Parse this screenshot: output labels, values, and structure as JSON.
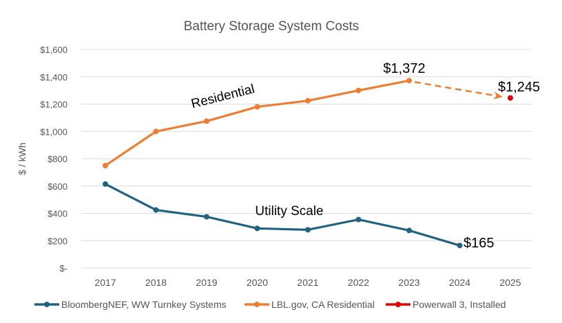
{
  "chart_data": {
    "type": "line",
    "title": "Battery Storage System Costs",
    "ylabel": "$ / kWh",
    "xlabel": "",
    "ylim": [
      0,
      1600
    ],
    "yticks": [
      0,
      200,
      400,
      600,
      800,
      1000,
      1200,
      1400,
      1600
    ],
    "ytick_labels": [
      "$-",
      "$200",
      "$400",
      "$600",
      "$800",
      "$1,000",
      "$1,200",
      "$1,400",
      "$1,600"
    ],
    "categories": [
      "2017",
      "2018",
      "2019",
      "2020",
      "2021",
      "2022",
      "2023",
      "2024",
      "2025"
    ],
    "grid": "horizontal",
    "legend": "bottom",
    "series": [
      {
        "name": "BloombergNEF, WW Turnkey Systems",
        "color": "#1f6281",
        "values": [
          615,
          425,
          375,
          290,
          280,
          355,
          275,
          165,
          null
        ]
      },
      {
        "name": "LBL.gov, CA Residential",
        "color": "#ed7d31",
        "values": [
          750,
          1000,
          1075,
          1180,
          1225,
          1300,
          1372,
          null,
          null
        ]
      },
      {
        "name": "Powerwall 3, Installed",
        "color": "#e00000",
        "values": [
          null,
          null,
          null,
          null,
          null,
          null,
          null,
          null,
          1245
        ]
      }
    ],
    "annotations": [
      {
        "text": "Residential",
        "series": 1
      },
      {
        "text": "Utility Scale",
        "series": 0
      },
      {
        "text": "$1,372",
        "category": "2023",
        "value": 1372
      },
      {
        "text": "$1,245",
        "category": "2025",
        "value": 1245
      },
      {
        "text": "$165",
        "category": "2024",
        "value": 165
      }
    ],
    "trend_arrow": {
      "from": [
        "2023",
        1372
      ],
      "to": [
        "2025",
        1245
      ],
      "style": "dashed",
      "color": "#ed7d31"
    }
  }
}
